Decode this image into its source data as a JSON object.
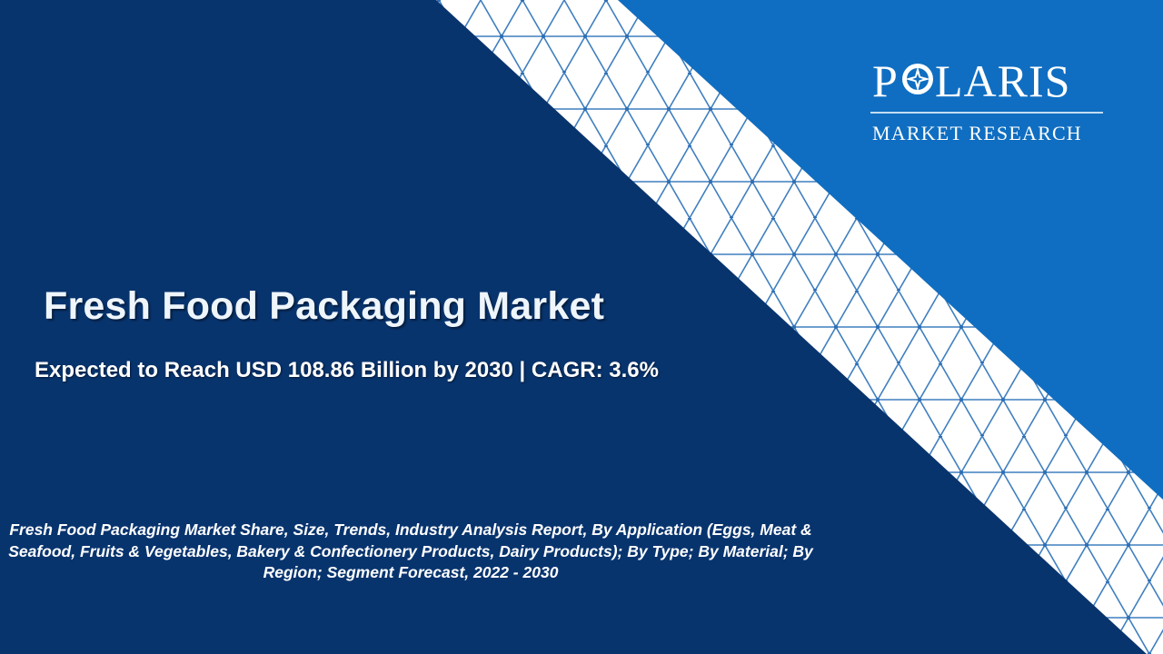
{
  "slide": {
    "title": "Fresh Food Packaging Market",
    "subtitle": "Expected to Reach USD 108.86 Billion by 2030 | CAGR: 3.6%",
    "description": "Fresh Food Packaging Market Share, Size, Trends, Industry Analysis Report, By Application (Eggs, Meat & Seafood, Fruits & Vegetables, Bakery & Confectionery Products, Dairy Products); By Type; By Material; By Region; Segment Forecast, 2022 - 2030"
  },
  "logo": {
    "brand_part1": "P",
    "brand_part2": "LARIS",
    "tagline": "MARKET RESEARCH",
    "icon": "compass-star-icon"
  },
  "colors": {
    "navy_background": "#08346e",
    "bright_blue": "#0f6ec1",
    "stripe_white": "#ffffff",
    "hex_line": "#3f7fc0"
  }
}
